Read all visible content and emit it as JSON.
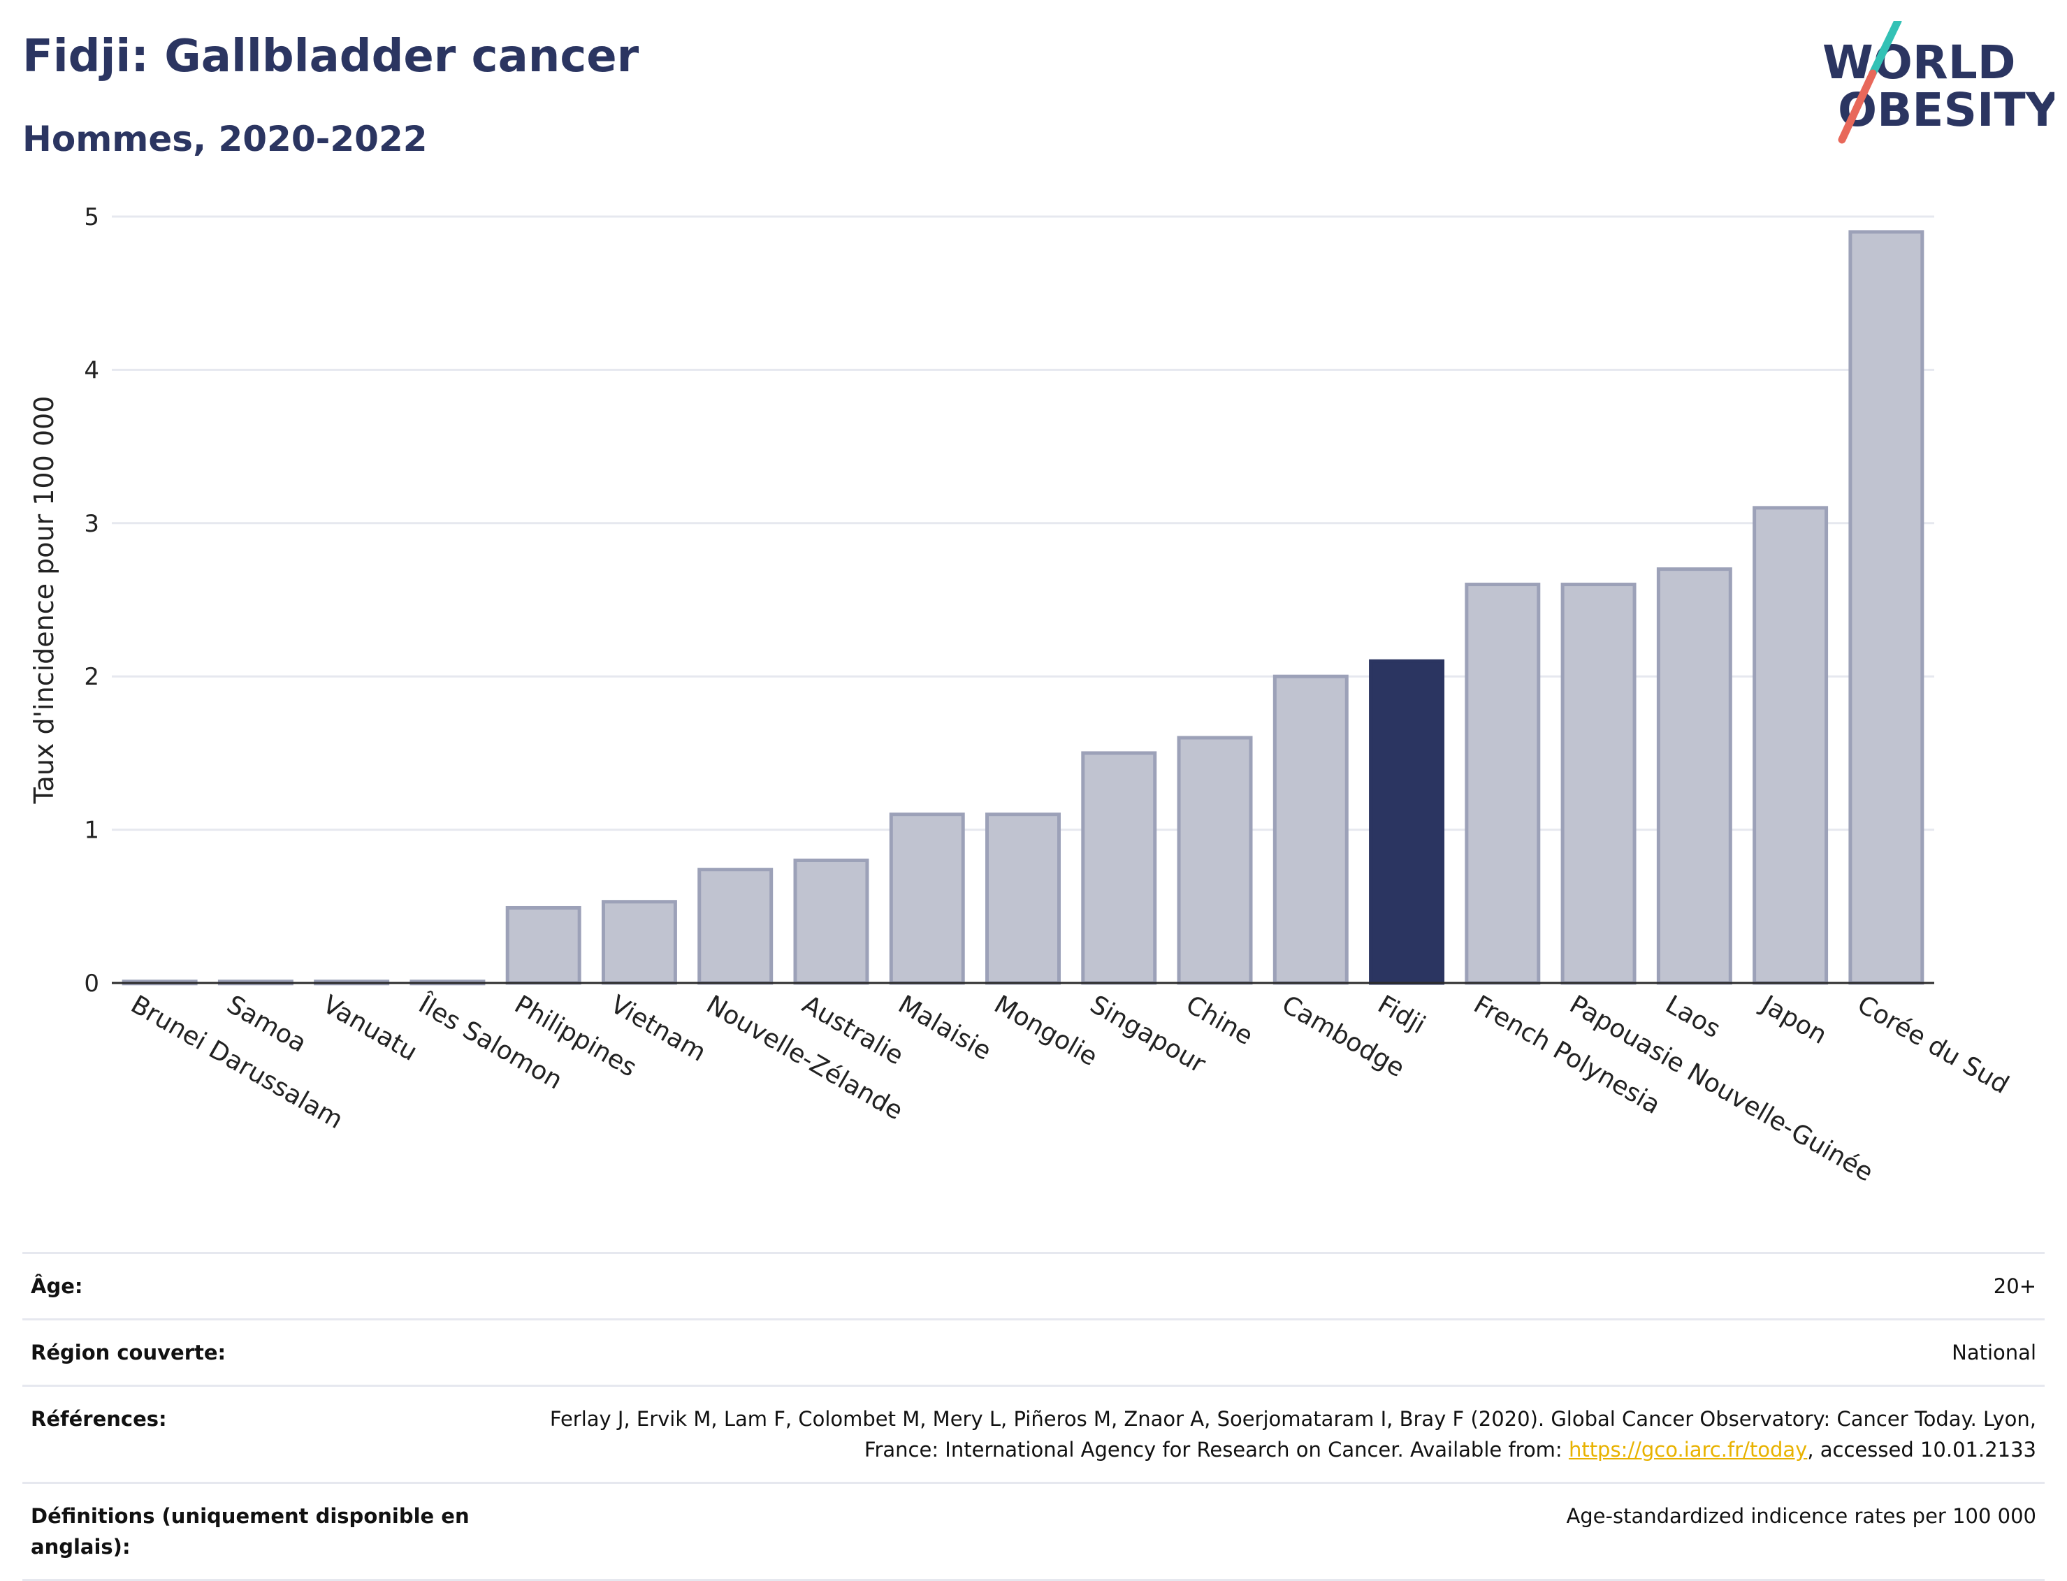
{
  "header": {
    "title": "Fidji: Gallbladder cancer",
    "subtitle": "Hommes, 2020-2022"
  },
  "logo": {
    "line1": "WORLD",
    "line2": "OBESITY",
    "colors": {
      "text": "#2b3561",
      "slash_top": "#33c1b5",
      "slash_bottom": "#e8685a"
    }
  },
  "chart_data": {
    "type": "bar",
    "title": "Fidji: Gallbladder cancer",
    "subtitle": "Hommes, 2020-2022",
    "ylabel": "Taux d'incidence pour 100 000",
    "xlabel": "",
    "ylim": [
      0,
      5
    ],
    "yticks": [
      0,
      1,
      2,
      3,
      4,
      5
    ],
    "grid": true,
    "categories": [
      "Brunei Darussalam",
      "Samoa",
      "Vanuatu",
      "Îles Salomon",
      "Philippines",
      "Vietnam",
      "Nouvelle-Zélande",
      "Australie",
      "Malaisie",
      "Mongolie",
      "Singapour",
      "Chine",
      "Cambodge",
      "Fidji",
      "French Polynesia",
      "Papouasie Nouvelle-Guinée",
      "Laos",
      "Japon",
      "Corée du Sud"
    ],
    "values": [
      0.01,
      0.01,
      0.01,
      0.01,
      0.49,
      0.53,
      0.74,
      0.8,
      1.1,
      1.1,
      1.5,
      1.6,
      2.0,
      2.1,
      2.6,
      2.6,
      2.7,
      3.1,
      4.9
    ],
    "highlight": "Fidji",
    "colors": {
      "bar": "#c0c3d0",
      "bar_edge": "#9ca1b8",
      "highlight": "#2b3561",
      "grid": "#e6e8ef",
      "axis": "#2b2b2b"
    }
  },
  "info": {
    "rows": [
      {
        "label": "Âge:",
        "value": "20+"
      },
      {
        "label": "Région couverte:",
        "value": "National"
      },
      {
        "label": "Références:",
        "value_before": "Ferlay J, Ervik M, Lam F, Colombet M, Mery L, Piñeros M, Znaor A, Soerjomataram I, Bray F (2020). Global Cancer Observatory: Cancer Today. Lyon, France: International Agency for Research on Cancer. Available from: ",
        "link": "https://gco.iarc.fr/today",
        "value_after": ", accessed 10.01.2133"
      },
      {
        "label": "Définitions (uniquement disponible en anglais):",
        "value": "Age-standardized indicence rates per 100 000"
      }
    ]
  }
}
